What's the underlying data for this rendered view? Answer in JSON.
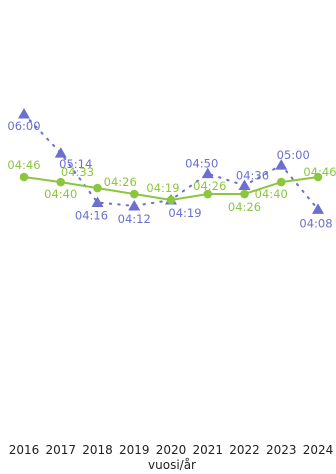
{
  "chart_data": {
    "type": "line",
    "xlabel": "vuosi/år",
    "categories": [
      "2016",
      "2017",
      "2018",
      "2019",
      "2020",
      "2021",
      "2022",
      "2023",
      "2024"
    ],
    "y_unit": "minutes (mm:ss)",
    "ylim": [
      120,
      400
    ],
    "grid": false,
    "legend": "none",
    "series": [
      {
        "marker": "triangle",
        "line_style": "dotted",
        "color": "#6b6fcf",
        "values": [
          360,
          314,
          256,
          252,
          259,
          290,
          276,
          300,
          248
        ],
        "labels": [
          "06:00",
          "05:14",
          "04:16",
          "04:12",
          "04:19",
          "04:50",
          "04:36",
          "05:00",
          "04:08"
        ]
      },
      {
        "marker": "circle",
        "line_style": "solid",
        "color": "#8cc63f",
        "values": [
          286,
          280,
          273,
          266,
          259,
          266,
          266,
          280,
          286
        ],
        "labels": [
          "04:46",
          "04:40",
          "04:33",
          "04:26",
          "04:19",
          "04:26",
          "04:26",
          "04:40",
          "04:46"
        ]
      }
    ]
  }
}
